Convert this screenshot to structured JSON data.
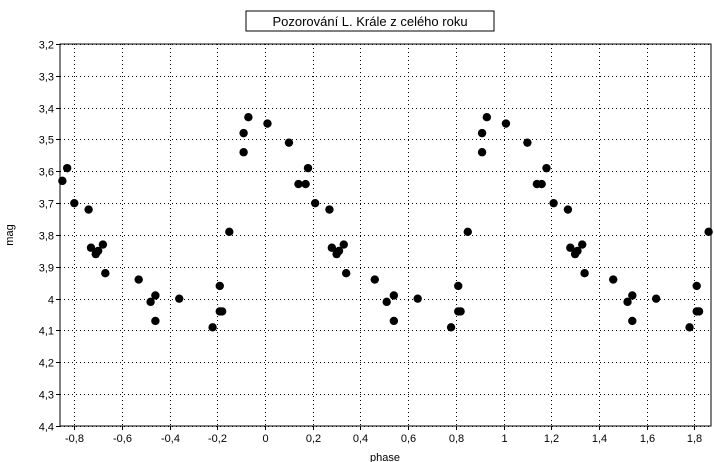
{
  "chart_data": {
    "type": "scatter",
    "title": "Pozorování L. Krále z celého roku",
    "xlabel": "phase",
    "ylabel": "mag",
    "xlim": [
      -0.86,
      1.87
    ],
    "ylim": [
      3.2,
      4.4
    ],
    "y_reversed": true,
    "grid": true,
    "x_ticks": [
      -0.8,
      -0.6,
      -0.4,
      -0.2,
      0,
      0.2,
      0.4,
      0.6,
      0.8,
      1,
      1.2,
      1.4,
      1.6,
      1.8
    ],
    "x_tick_labels": [
      "-0,8",
      "-0,6",
      "-0,4",
      "-0,2",
      "0",
      "0,2",
      "0,4",
      "0,6",
      "0,8",
      "1",
      "1,2",
      "1,4",
      "1,6",
      "1,8"
    ],
    "y_ticks": [
      3.2,
      3.3,
      3.4,
      3.5,
      3.6,
      3.7,
      3.8,
      3.9,
      4.0,
      4.1,
      4.2,
      4.3,
      4.4
    ],
    "y_tick_labels": [
      "3,2",
      "3,3",
      "3,4",
      "3,5",
      "3,6",
      "3,7",
      "3,8",
      "3,9",
      "4",
      "4,1",
      "4,2",
      "4,3",
      "4,4"
    ],
    "colors": {
      "marker": "#000000",
      "grid": "#000000",
      "background": "#ffffff"
    },
    "series": [
      {
        "points": [
          [
            -0.85,
            3.63
          ],
          [
            -0.83,
            3.59
          ],
          [
            -0.8,
            3.7
          ],
          [
            -0.74,
            3.72
          ],
          [
            -0.73,
            3.84
          ],
          [
            -0.71,
            3.86
          ],
          [
            -0.7,
            3.85
          ],
          [
            -0.68,
            3.83
          ],
          [
            -0.67,
            3.92
          ],
          [
            -0.53,
            3.94
          ],
          [
            -0.48,
            4.01
          ],
          [
            -0.46,
            3.99
          ],
          [
            -0.46,
            4.07
          ],
          [
            -0.36,
            4.0
          ],
          [
            -0.22,
            4.09
          ],
          [
            -0.19,
            3.96
          ],
          [
            -0.19,
            4.04
          ],
          [
            -0.18,
            4.04
          ],
          [
            -0.15,
            3.79
          ],
          [
            -0.09,
            3.48
          ],
          [
            -0.09,
            3.54
          ],
          [
            -0.07,
            3.43
          ],
          [
            0.01,
            3.45
          ],
          [
            0.1,
            3.51
          ],
          [
            0.14,
            3.64
          ],
          [
            0.17,
            3.64
          ],
          [
            0.18,
            3.59
          ],
          [
            0.21,
            3.7
          ],
          [
            0.27,
            3.72
          ],
          [
            0.28,
            3.84
          ],
          [
            0.3,
            3.86
          ],
          [
            0.31,
            3.85
          ],
          [
            0.33,
            3.83
          ],
          [
            0.34,
            3.92
          ],
          [
            0.46,
            3.94
          ],
          [
            0.51,
            4.01
          ],
          [
            0.54,
            3.99
          ],
          [
            0.54,
            4.07
          ],
          [
            0.64,
            4.0
          ],
          [
            0.78,
            4.09
          ],
          [
            0.81,
            3.96
          ],
          [
            0.81,
            4.04
          ],
          [
            0.82,
            4.04
          ],
          [
            0.85,
            3.79
          ],
          [
            0.91,
            3.48
          ],
          [
            0.91,
            3.54
          ],
          [
            0.93,
            3.43
          ],
          [
            1.01,
            3.45
          ],
          [
            1.1,
            3.51
          ],
          [
            1.14,
            3.64
          ],
          [
            1.16,
            3.64
          ],
          [
            1.18,
            3.59
          ],
          [
            1.21,
            3.7
          ],
          [
            1.27,
            3.72
          ],
          [
            1.28,
            3.84
          ],
          [
            1.3,
            3.86
          ],
          [
            1.31,
            3.85
          ],
          [
            1.33,
            3.83
          ],
          [
            1.34,
            3.92
          ],
          [
            1.46,
            3.94
          ],
          [
            1.52,
            4.01
          ],
          [
            1.54,
            3.99
          ],
          [
            1.54,
            4.07
          ],
          [
            1.64,
            4.0
          ],
          [
            1.78,
            4.09
          ],
          [
            1.81,
            3.96
          ],
          [
            1.81,
            4.04
          ],
          [
            1.82,
            4.04
          ],
          [
            1.86,
            3.79
          ]
        ]
      }
    ]
  }
}
